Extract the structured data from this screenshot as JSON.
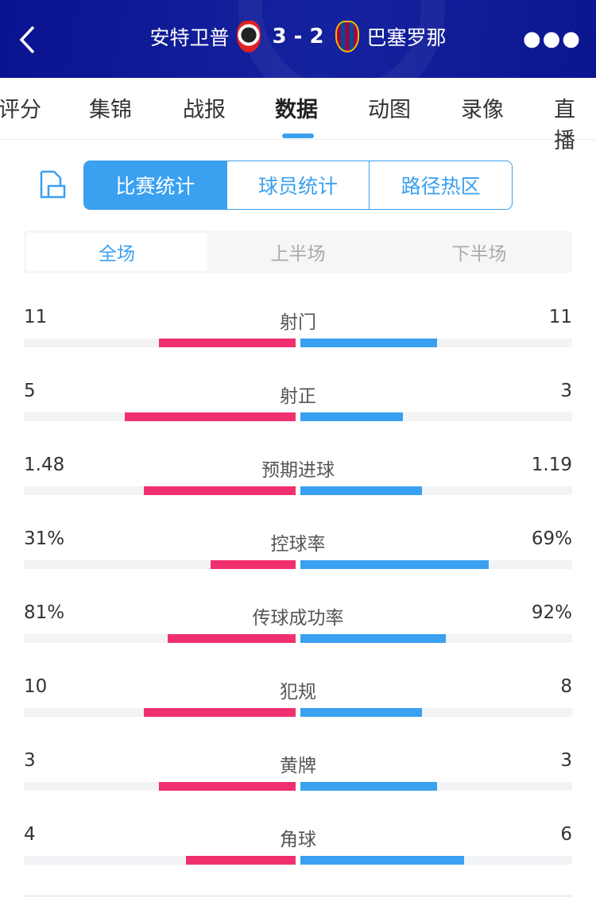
{
  "header": {
    "home_team": "安特卫普",
    "score": "3 - 2",
    "away_team": "巴塞罗那",
    "back_icon": "chevron-left-icon",
    "more_icon": "more-dots-icon"
  },
  "tabs": [
    {
      "label": "评分"
    },
    {
      "label": "集锦"
    },
    {
      "label": "战报"
    },
    {
      "label": "数据",
      "active": true
    },
    {
      "label": "动图"
    },
    {
      "label": "录像"
    },
    {
      "label": "直播"
    }
  ],
  "stat_types": [
    "比赛统计",
    "球员统计",
    "路径热区"
  ],
  "periods": [
    "全场",
    "上半场",
    "下半场"
  ],
  "colors": {
    "home": "#f0306e",
    "away": "#3aa0f0",
    "header": "#0a1390"
  },
  "stats": [
    {
      "name": "射门",
      "home": "11",
      "away": "11",
      "hv": 11,
      "av": 11
    },
    {
      "name": "射正",
      "home": "5",
      "away": "3",
      "hv": 5,
      "av": 3
    },
    {
      "name": "预期进球",
      "home": "1.48",
      "away": "1.19",
      "hv": 1.48,
      "av": 1.19
    },
    {
      "name": "控球率",
      "home": "31%",
      "away": "69%",
      "hv": 31,
      "av": 69
    },
    {
      "name": "传球成功率",
      "home": "81%",
      "away": "92%",
      "hv": 81,
      "av": 92
    },
    {
      "name": "犯规",
      "home": "10",
      "away": "8",
      "hv": 10,
      "av": 8
    },
    {
      "name": "黄牌",
      "home": "3",
      "away": "3",
      "hv": 3,
      "av": 3
    },
    {
      "name": "角球",
      "home": "4",
      "away": "6",
      "hv": 4,
      "av": 6
    }
  ]
}
